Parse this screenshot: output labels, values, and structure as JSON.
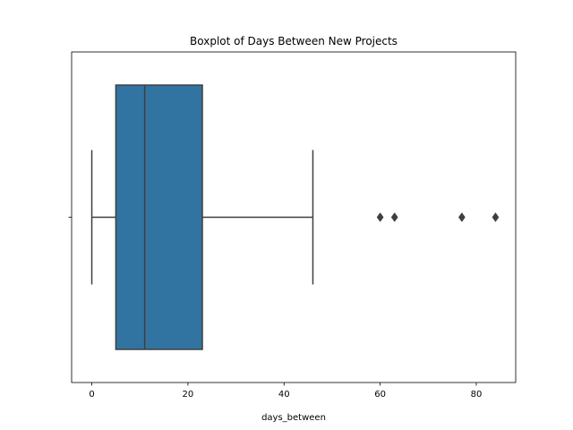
{
  "chart_data": {
    "type": "boxplot",
    "title": "Boxplot of Days Between New Projects",
    "xlabel": "days_between",
    "ylabel": "",
    "xlim": [
      -4.2,
      88.2
    ],
    "xticks": [
      0,
      20,
      40,
      60,
      80
    ],
    "xtick_labels": [
      "0",
      "20",
      "40",
      "60",
      "80"
    ],
    "grid": false,
    "box": {
      "whisker_low": 0,
      "q1": 5,
      "median": 11,
      "q3": 23,
      "whisker_high": 46,
      "outliers": [
        60,
        63,
        77,
        84
      ],
      "color": "#3274a1",
      "line_color": "#3f3f3f"
    }
  }
}
